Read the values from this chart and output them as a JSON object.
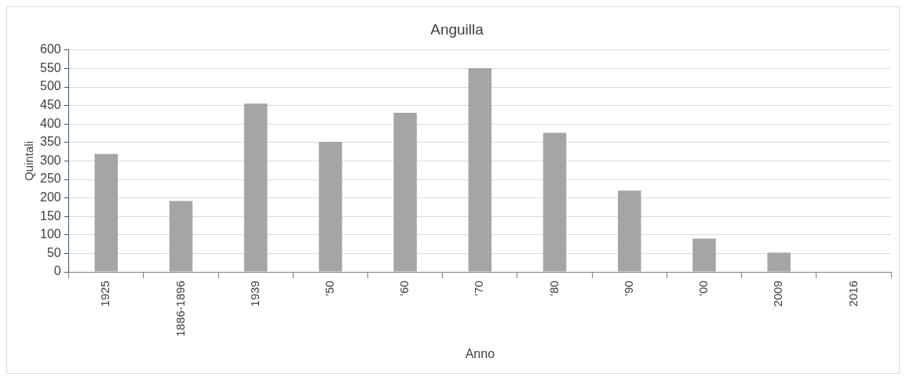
{
  "chart_data": {
    "type": "bar",
    "title": "Anguilla",
    "xlabel": "Anno",
    "ylabel": "Quintali",
    "categories": [
      "1925",
      "1886-1896",
      "1939",
      "'50",
      "'60",
      "'70",
      "'80",
      "'90",
      "'00",
      "2009",
      "2016"
    ],
    "values": [
      319,
      192,
      455,
      352,
      430,
      551,
      376,
      220,
      90,
      52,
      0
    ],
    "color": "#a5a5a5",
    "ylim": [
      0,
      600
    ],
    "yticks": [
      0,
      50,
      100,
      150,
      200,
      250,
      300,
      350,
      400,
      450,
      500,
      550,
      600
    ],
    "grid": "y",
    "legend": false
  }
}
